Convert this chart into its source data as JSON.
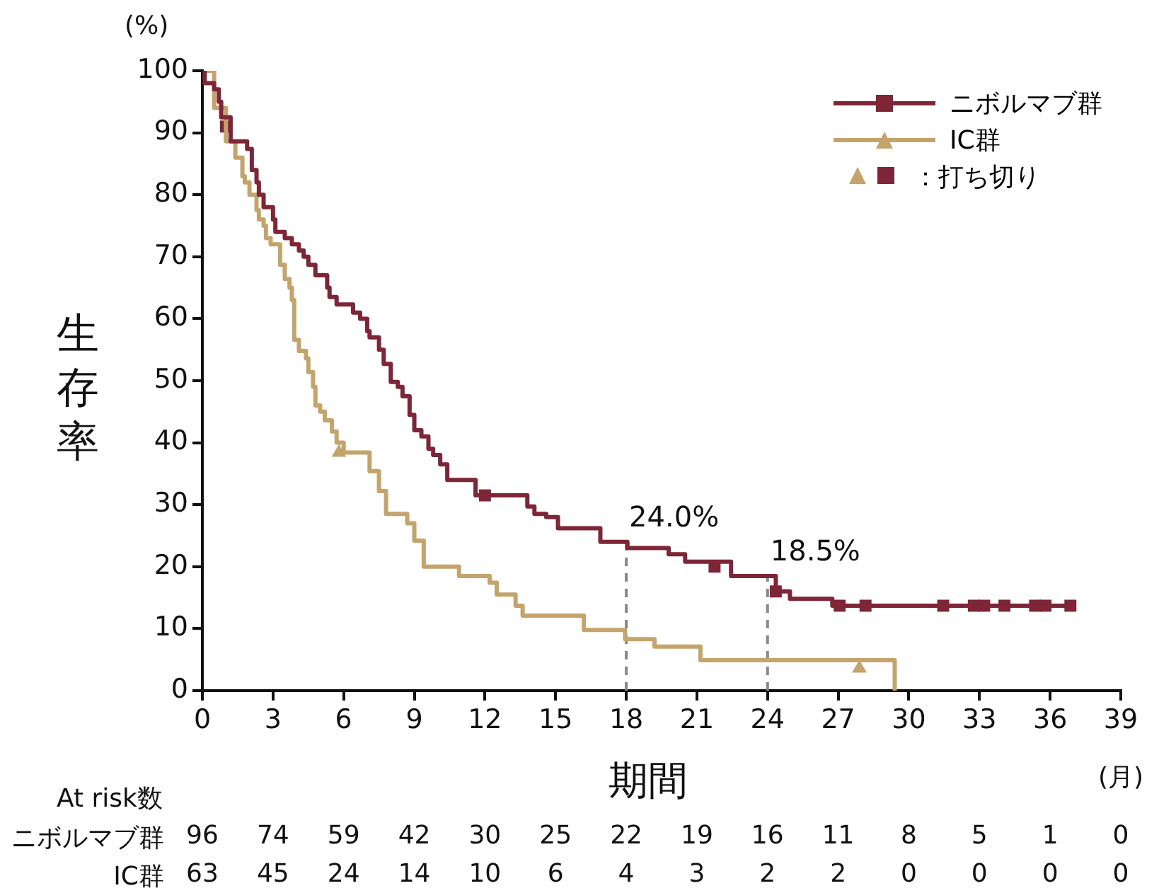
{
  "chart_data": {
    "type": "step",
    "ylabel": "生存率",
    "xlabel": "期間",
    "xlim": [
      0,
      39
    ],
    "xticks": [
      0,
      3,
      6,
      9,
      12,
      15,
      18,
      21,
      24,
      27,
      30,
      33,
      36,
      39
    ],
    "ylim": [
      0,
      100
    ],
    "yticks": [
      0,
      10,
      20,
      30,
      40,
      50,
      60,
      70,
      80,
      90,
      100
    ],
    "grid": false,
    "legend": "top right",
    "series": [
      {
        "name": "ニボルマブ群",
        "color": "#7f2538",
        "x": [
          0,
          0.1,
          0.5,
          0.7,
          0.8,
          1.2,
          1.9,
          2.1,
          2.3,
          2.4,
          2.6,
          3.0,
          3.1,
          3.5,
          3.8,
          4.1,
          4.3,
          4.5,
          4.8,
          5.3,
          5.4,
          5.7,
          6.4,
          6.7,
          7.0,
          7.1,
          7.5,
          7.7,
          8.0,
          8.3,
          8.5,
          8.8,
          9.0,
          9.3,
          9.6,
          9.8,
          10.1,
          10.4,
          11.6,
          13.8,
          14.1,
          14.6,
          15.1,
          16.9,
          18.05,
          19.8,
          20.5,
          22.45,
          24.35,
          24.95,
          26.75,
          37.0
        ],
        "values": [
          100,
          98,
          97,
          95,
          92.5,
          88.6,
          87.4,
          84,
          82,
          80,
          78,
          76,
          74,
          73,
          72,
          71,
          70,
          68.7,
          67,
          65,
          63.5,
          62.3,
          61,
          60,
          58,
          57,
          55,
          52.7,
          49.8,
          49,
          47.5,
          44.5,
          42,
          41,
          39,
          38,
          36.5,
          34,
          31.5,
          29.7,
          28.5,
          28,
          26.2,
          24.0,
          23.0,
          22,
          20.8,
          18.5,
          16,
          14.8,
          13.7,
          13.7
        ]
      },
      {
        "name": "IC群",
        "color": "#c4a46a",
        "x": [
          0,
          0.5,
          1.0,
          1.4,
          1.7,
          1.8,
          2.0,
          2.3,
          2.4,
          2.6,
          2.7,
          2.9,
          3.3,
          3.5,
          3.7,
          3.8,
          3.9,
          4.1,
          4.4,
          4.5,
          4.7,
          4.8,
          5.0,
          5.2,
          5.5,
          5.7,
          6.0,
          7.1,
          7.5,
          7.8,
          8.7,
          9.0,
          9.4,
          10.9,
          12.2,
          12.5,
          13.3,
          13.6,
          16.2,
          17.95,
          19.2,
          21.15,
          29.4,
          29.4
        ],
        "values": [
          100,
          94,
          88.6,
          86,
          83,
          82,
          80,
          77.5,
          76,
          75,
          73,
          72,
          68.7,
          66.4,
          65,
          63,
          56.6,
          54.8,
          53.6,
          51.4,
          49,
          46,
          45,
          43.6,
          41.8,
          40,
          38.4,
          35.4,
          32.2,
          28.5,
          27,
          24.2,
          20,
          18.5,
          17.4,
          15.5,
          13.7,
          12.1,
          9.8,
          8.3,
          7.1,
          4.9,
          3.6,
          0
        ]
      },
      {
        "type": "scatter",
        "name": "：打ち切り",
        "color": "#7f2538",
        "marker": "square",
        "x": [
          1.0,
          12.0,
          21.75,
          24.35,
          27.06,
          28.16,
          31.46,
          32.76,
          33.2,
          34.06,
          35.36,
          35.8,
          36.86
        ],
        "values": [
          91,
          31.5,
          20,
          16,
          13.7,
          13.7,
          13.7,
          13.7,
          13.7,
          13.7,
          13.7,
          13.7,
          13.7
        ]
      },
      {
        "type": "scatter",
        "color": "#c4a46a",
        "marker": "triangle",
        "x": [
          5.8,
          27.9
        ],
        "values": [
          38.4,
          3.6
        ]
      }
    ],
    "ref_lines": [
      {
        "axis": "x",
        "value": 18,
        "color": "#888888",
        "line_style": "dashed"
      },
      {
        "axis": "x",
        "value": 24,
        "color": "#888888",
        "line_style": "dashed"
      }
    ],
    "annotations": [
      "(%)",
      "(月)",
      {
        "text": "24.0%",
        "x": 18,
        "y": 24.0
      },
      {
        "text": "18.5%",
        "x": 24,
        "y": 18.5
      },
      "At risk数",
      "ニボルマブ群 96 74 59 42 30 25 22 19 16 11 8 5 1 0",
      "IC群 63 45 24 14 10 6 4 3 2 2 0 0 0 0"
    ]
  }
}
